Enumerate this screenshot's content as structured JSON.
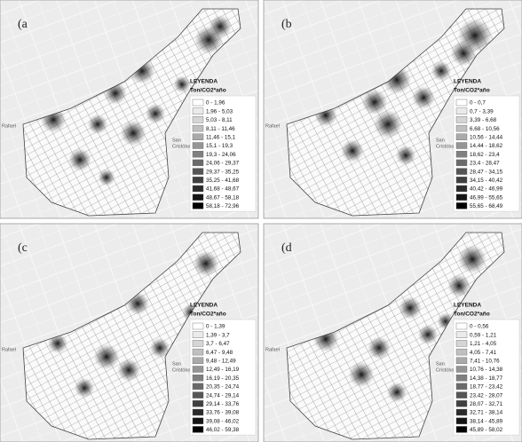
{
  "panels": [
    {
      "label": "(a",
      "places": [
        "Rafael",
        "San",
        "Cristóbal"
      ],
      "legend": {
        "title": "LEYENDA",
        "unit": "Ton/CO2*año",
        "entries": [
          "0 - 1,96",
          "1,96 - 5,03",
          "5,03 - 8,11",
          "8,11 - 11,46",
          "11,46 - 15,1",
          "15,1 - 19,3",
          "19,3 - 24,06",
          "24,06 - 29,37",
          "29,37 - 35,25",
          "35,25 - 41,68",
          "41,68 - 48,67",
          "48,67 - 58,18",
          "58,18 - 72,96"
        ]
      }
    },
    {
      "label": "(b",
      "places": [
        "Rafael",
        "San",
        "Cristóbal"
      ],
      "legend": {
        "title": "LEYENDA",
        "unit": "Ton/CO2*año",
        "entries": [
          "0 - 0,7",
          "0,7 - 3,39",
          "3,39 - 6,68",
          "6,68 - 10,56",
          "10,56 - 14,44",
          "14,44 - 18,62",
          "18,62 - 23,4",
          "23,4 - 28,47",
          "28,47 - 34,15",
          "34,15 - 40,42",
          "40,42 - 46,99",
          "46,99 - 55,65",
          "55,65 - 68,49"
        ]
      }
    },
    {
      "label": "(c",
      "places": [
        "Rafael",
        "San",
        "Cristóbal"
      ],
      "legend": {
        "title": "LEYENDA",
        "unit": "Ton/CO2*año",
        "entries": [
          "0 - 1,39",
          "1,39 - 3,7",
          "3,7 - 6,47",
          "6,47 - 9,48",
          "9,48 - 12,49",
          "12,49 - 16,19",
          "16,19 - 20,35",
          "20,35 - 24,74",
          "24,74 - 29,14",
          "29,14 - 33,76",
          "33,76 - 39,08",
          "39,08 - 46,02",
          "46,02 - 59,38"
        ]
      }
    },
    {
      "label": "(d",
      "places": [
        "Rafael",
        "San",
        "Cristóbal"
      ],
      "legend": {
        "title": "LEYENDA",
        "unit": "Ton/CO2*año",
        "entries": [
          "0 - 0,56",
          "0,59 - 1,21",
          "1,21 - 4,05",
          "4,05 - 7,41",
          "7,41 - 10,76",
          "10,76 - 14,38",
          "14,38 - 18,77",
          "18,77 - 23,42",
          "23,42 - 28,07",
          "28,07 - 32,71",
          "32,71 - 38,14",
          "38,14 - 45,89",
          "45,89 - 58,02"
        ]
      }
    }
  ]
}
